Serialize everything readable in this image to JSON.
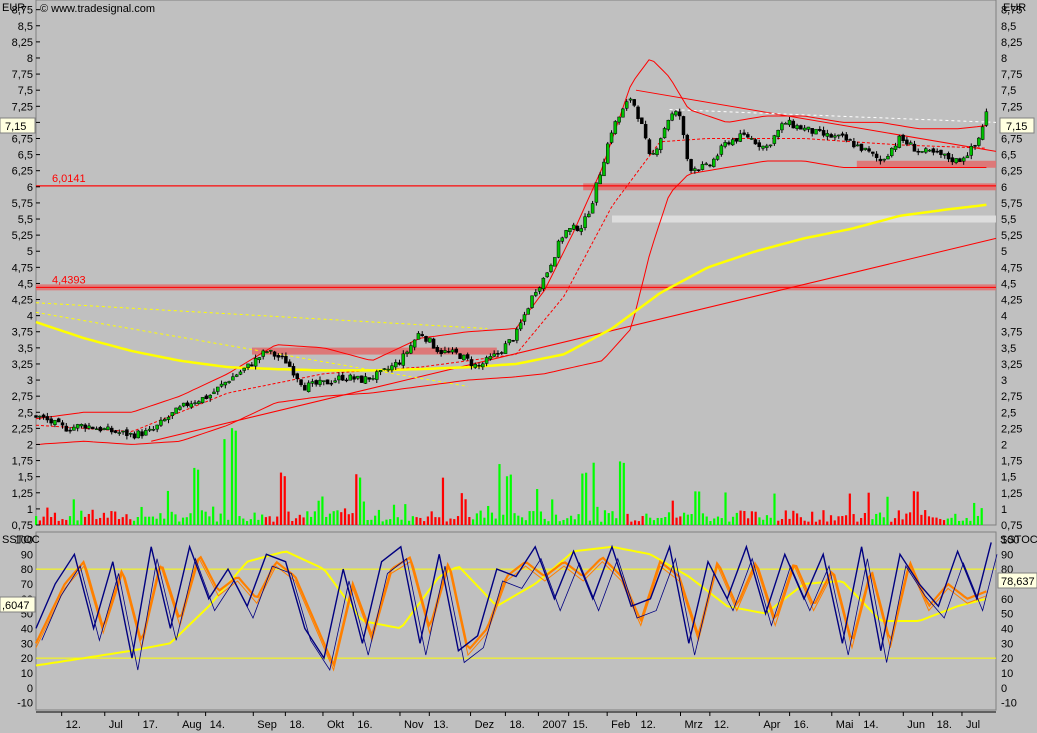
{
  "header": {
    "copyright": "© www.tradesignal.com",
    "unit": "EUR",
    "indicator": "SSTOC"
  },
  "price_panel": {
    "y_ticks": [
      "8,75",
      "8,5",
      "8,25",
      "8",
      "7,75",
      "7,5",
      "7,25",
      "7",
      "6,75",
      "6,5",
      "6,25",
      "6",
      "5,75",
      "5,5",
      "5,25",
      "5",
      "4,75",
      "4,5",
      "4,25",
      "4",
      "3,75",
      "3,5",
      "3,25",
      "3",
      "2,75",
      "2,5",
      "2,25",
      "2",
      "1,75",
      "1,5",
      "1,25",
      "1",
      "0,75"
    ],
    "last_price_label": "7,15",
    "levels": [
      {
        "label": "6,0141",
        "value": 6.0141
      },
      {
        "label": "4,4393",
        "value": 4.4393
      }
    ],
    "colors": {
      "bollinger": "#ff0000",
      "sma": "#ffff00",
      "candle_up": "#00c000",
      "candle_down": "#000000",
      "volume_up": "#00ff00",
      "volume_down": "#ff0000",
      "zone": "#e07070",
      "light_zone": "#e0e0e0"
    }
  },
  "stoch_panel": {
    "y_ticks": [
      "100",
      "90",
      "80",
      "70",
      "60",
      "50",
      "40",
      "30",
      "20",
      "10",
      "0",
      "-10"
    ],
    "left_label": ",6047",
    "right_label": "78,637",
    "line_80": 80,
    "line_20": 20,
    "colors": {
      "fast": "#000080",
      "slow": "#ff8000",
      "signal": "#ffff00"
    }
  },
  "x_axis": {
    "labels": [
      {
        "text": "12.",
        "pos": 0.028
      },
      {
        "text": "Jul",
        "pos": 0.075
      },
      {
        "text": "17.",
        "pos": 0.112
      },
      {
        "text": "Aug",
        "pos": 0.155
      },
      {
        "text": "14.",
        "pos": 0.185
      },
      {
        "text": "Sep",
        "pos": 0.237
      },
      {
        "text": "18.",
        "pos": 0.272
      },
      {
        "text": "Okt",
        "pos": 0.313
      },
      {
        "text": "16.",
        "pos": 0.346
      },
      {
        "text": "Nov",
        "pos": 0.397
      },
      {
        "text": "13.",
        "pos": 0.429
      },
      {
        "text": "Dez",
        "pos": 0.474
      },
      {
        "text": "18.",
        "pos": 0.512
      },
      {
        "text": "2007",
        "pos": 0.548
      },
      {
        "text": "15.",
        "pos": 0.581
      },
      {
        "text": "Feb",
        "pos": 0.623
      },
      {
        "text": "12.",
        "pos": 0.655
      },
      {
        "text": "Mrz",
        "pos": 0.703
      },
      {
        "text": "12.",
        "pos": 0.735
      },
      {
        "text": "Apr",
        "pos": 0.789
      },
      {
        "text": "16.",
        "pos": 0.822
      },
      {
        "text": "Mai",
        "pos": 0.868
      },
      {
        "text": "14.",
        "pos": 0.898
      },
      {
        "text": "Jun",
        "pos": 0.946
      },
      {
        "text": "18.",
        "pos": 0.978
      },
      {
        "text": "Jul",
        "pos": 1.01
      }
    ]
  },
  "chart_data": {
    "type": "candlestick",
    "ylim": [
      0.75,
      8.9
    ],
    "price_anchors": [
      [
        0,
        2.45
      ],
      [
        0.03,
        2.25
      ],
      [
        0.05,
        2.3
      ],
      [
        0.08,
        2.2
      ],
      [
        0.1,
        2.15
      ],
      [
        0.12,
        2.2
      ],
      [
        0.14,
        2.45
      ],
      [
        0.16,
        2.65
      ],
      [
        0.18,
        2.75
      ],
      [
        0.2,
        3.0
      ],
      [
        0.22,
        3.2
      ],
      [
        0.24,
        3.45
      ],
      [
        0.26,
        3.3
      ],
      [
        0.28,
        2.9
      ],
      [
        0.3,
        2.95
      ],
      [
        0.32,
        3.05
      ],
      [
        0.34,
        3.0
      ],
      [
        0.36,
        3.1
      ],
      [
        0.38,
        3.3
      ],
      [
        0.4,
        3.75
      ],
      [
        0.42,
        3.45
      ],
      [
        0.44,
        3.4
      ],
      [
        0.46,
        3.2
      ],
      [
        0.48,
        3.4
      ],
      [
        0.5,
        3.7
      ],
      [
        0.52,
        4.4
      ],
      [
        0.53,
        4.6
      ],
      [
        0.55,
        5.3
      ],
      [
        0.57,
        5.4
      ],
      [
        0.58,
        5.8
      ],
      [
        0.6,
        6.9
      ],
      [
        0.62,
        7.4
      ],
      [
        0.63,
        7.0
      ],
      [
        0.64,
        6.4
      ],
      [
        0.66,
        7.1
      ],
      [
        0.67,
        7.15
      ],
      [
        0.68,
        6.3
      ],
      [
        0.7,
        6.3
      ],
      [
        0.72,
        6.7
      ],
      [
        0.74,
        6.8
      ],
      [
        0.76,
        6.6
      ],
      [
        0.78,
        7.0
      ],
      [
        0.8,
        6.9
      ],
      [
        0.82,
        6.8
      ],
      [
        0.84,
        6.75
      ],
      [
        0.86,
        6.6
      ],
      [
        0.88,
        6.4
      ],
      [
        0.9,
        6.75
      ],
      [
        0.92,
        6.55
      ],
      [
        0.94,
        6.5
      ],
      [
        0.96,
        6.4
      ],
      [
        0.98,
        6.65
      ],
      [
        0.99,
        7.15
      ]
    ],
    "upper_band": [
      [
        0,
        2.4
      ],
      [
        0.05,
        2.5
      ],
      [
        0.1,
        2.5
      ],
      [
        0.15,
        2.75
      ],
      [
        0.2,
        3.1
      ],
      [
        0.25,
        3.55
      ],
      [
        0.3,
        3.5
      ],
      [
        0.35,
        3.3
      ],
      [
        0.4,
        3.65
      ],
      [
        0.45,
        3.75
      ],
      [
        0.5,
        3.8
      ],
      [
        0.53,
        4.4
      ],
      [
        0.56,
        5.3
      ],
      [
        0.59,
        6.3
      ],
      [
        0.62,
        7.6
      ],
      [
        0.64,
        8.0
      ],
      [
        0.66,
        7.7
      ],
      [
        0.68,
        7.2
      ],
      [
        0.72,
        7.0
      ],
      [
        0.76,
        7.1
      ],
      [
        0.8,
        7.1
      ],
      [
        0.84,
        7.0
      ],
      [
        0.88,
        7.0
      ],
      [
        0.92,
        6.9
      ],
      [
        0.96,
        6.9
      ],
      [
        0.99,
        6.95
      ]
    ],
    "lower_band": [
      [
        0,
        2.0
      ],
      [
        0.05,
        2.05
      ],
      [
        0.1,
        2.0
      ],
      [
        0.15,
        2.05
      ],
      [
        0.2,
        2.3
      ],
      [
        0.25,
        2.65
      ],
      [
        0.3,
        2.75
      ],
      [
        0.35,
        2.8
      ],
      [
        0.4,
        2.9
      ],
      [
        0.45,
        3.0
      ],
      [
        0.5,
        3.05
      ],
      [
        0.53,
        3.1
      ],
      [
        0.56,
        3.2
      ],
      [
        0.59,
        3.3
      ],
      [
        0.62,
        3.8
      ],
      [
        0.64,
        5.0
      ],
      [
        0.66,
        5.9
      ],
      [
        0.68,
        6.2
      ],
      [
        0.72,
        6.3
      ],
      [
        0.76,
        6.4
      ],
      [
        0.8,
        6.4
      ],
      [
        0.84,
        6.3
      ],
      [
        0.88,
        6.3
      ],
      [
        0.92,
        6.3
      ],
      [
        0.96,
        6.3
      ],
      [
        0.99,
        6.3
      ]
    ],
    "middle_band": [
      [
        0,
        2.3
      ],
      [
        0.1,
        2.2
      ],
      [
        0.2,
        2.8
      ],
      [
        0.3,
        3.1
      ],
      [
        0.4,
        3.2
      ],
      [
        0.5,
        3.4
      ],
      [
        0.55,
        4.3
      ],
      [
        0.6,
        5.7
      ],
      [
        0.65,
        6.7
      ],
      [
        0.7,
        6.75
      ],
      [
        0.8,
        6.75
      ],
      [
        0.9,
        6.65
      ],
      [
        0.99,
        6.6
      ]
    ],
    "sma_long": [
      [
        0,
        3.9
      ],
      [
        0.05,
        3.65
      ],
      [
        0.1,
        3.45
      ],
      [
        0.15,
        3.3
      ],
      [
        0.2,
        3.2
      ],
      [
        0.25,
        3.17
      ],
      [
        0.3,
        3.15
      ],
      [
        0.35,
        3.15
      ],
      [
        0.4,
        3.17
      ],
      [
        0.45,
        3.2
      ],
      [
        0.5,
        3.25
      ],
      [
        0.55,
        3.4
      ],
      [
        0.6,
        3.8
      ],
      [
        0.65,
        4.35
      ],
      [
        0.7,
        4.75
      ],
      [
        0.75,
        5.0
      ],
      [
        0.8,
        5.2
      ],
      [
        0.85,
        5.35
      ],
      [
        0.9,
        5.55
      ],
      [
        0.95,
        5.65
      ],
      [
        0.99,
        5.72
      ]
    ],
    "trendlines": [
      {
        "from": [
          0.12,
          2.05
        ],
        "to": [
          1.0,
          5.2
        ],
        "color": "#ff0000",
        "style": "solid"
      },
      {
        "from": [
          0.625,
          7.5
        ],
        "to": [
          1.0,
          6.55
        ],
        "color": "#ff0000",
        "style": "solid"
      },
      {
        "from": [
          0.0,
          4.2
        ],
        "to": [
          0.47,
          3.8
        ],
        "color": "#ffff00",
        "style": "dashed"
      },
      {
        "from": [
          0.0,
          4.05
        ],
        "to": [
          0.45,
          2.9
        ],
        "color": "#ffff00",
        "style": "dashed"
      },
      {
        "from": [
          0.66,
          7.2
        ],
        "to": [
          1.0,
          7.0
        ],
        "color": "#ffffff",
        "style": "dashed"
      }
    ],
    "zones": [
      {
        "from": 0.225,
        "to": 0.48,
        "value": 3.45,
        "color": "#e07070"
      },
      {
        "from": 0.855,
        "to": 1.0,
        "value": 6.35,
        "color": "#e07070"
      },
      {
        "from": 0.57,
        "to": 1.0,
        "value": 6.0,
        "color": "#e07070"
      },
      {
        "from": 0.6,
        "to": 1.0,
        "value": 5.5,
        "color": "#e0e0e0"
      }
    ],
    "volume_spikes": [
      [
        0.17,
        0.85
      ],
      [
        0.2,
        1.25
      ],
      [
        0.21,
        1.45
      ],
      [
        0.26,
        0.75
      ],
      [
        0.34,
        0.7
      ],
      [
        0.43,
        0.65
      ],
      [
        0.49,
        0.85
      ],
      [
        0.5,
        0.7
      ],
      [
        0.53,
        0.55
      ],
      [
        0.58,
        0.75
      ],
      [
        0.59,
        0.9
      ],
      [
        0.62,
        0.95
      ],
      [
        0.7,
        0.5
      ],
      [
        0.73,
        0.45
      ],
      [
        0.78,
        0.45
      ],
      [
        0.86,
        0.4
      ],
      [
        0.93,
        0.45
      ]
    ],
    "stoch_fast": [
      [
        0,
        40
      ],
      [
        0.02,
        70
      ],
      [
        0.04,
        90
      ],
      [
        0.06,
        40
      ],
      [
        0.08,
        85
      ],
      [
        0.1,
        20
      ],
      [
        0.12,
        95
      ],
      [
        0.14,
        40
      ],
      [
        0.16,
        95
      ],
      [
        0.18,
        60
      ],
      [
        0.2,
        80
      ],
      [
        0.22,
        55
      ],
      [
        0.24,
        90
      ],
      [
        0.26,
        85
      ],
      [
        0.28,
        40
      ],
      [
        0.3,
        20
      ],
      [
        0.32,
        80
      ],
      [
        0.34,
        30
      ],
      [
        0.36,
        85
      ],
      [
        0.38,
        95
      ],
      [
        0.4,
        30
      ],
      [
        0.42,
        90
      ],
      [
        0.44,
        25
      ],
      [
        0.46,
        35
      ],
      [
        0.48,
        80
      ],
      [
        0.5,
        75
      ],
      [
        0.52,
        95
      ],
      [
        0.54,
        60
      ],
      [
        0.56,
        92
      ],
      [
        0.58,
        60
      ],
      [
        0.6,
        95
      ],
      [
        0.62,
        55
      ],
      [
        0.64,
        60
      ],
      [
        0.66,
        95
      ],
      [
        0.68,
        30
      ],
      [
        0.7,
        85
      ],
      [
        0.72,
        60
      ],
      [
        0.74,
        95
      ],
      [
        0.76,
        50
      ],
      [
        0.78,
        90
      ],
      [
        0.8,
        60
      ],
      [
        0.82,
        90
      ],
      [
        0.84,
        30
      ],
      [
        0.86,
        95
      ],
      [
        0.88,
        25
      ],
      [
        0.9,
        90
      ],
      [
        0.92,
        70
      ],
      [
        0.94,
        55
      ],
      [
        0.96,
        92
      ],
      [
        0.98,
        60
      ],
      [
        0.995,
        98
      ]
    ],
    "stoch_slow": [
      [
        0,
        30
      ],
      [
        0.03,
        70
      ],
      [
        0.05,
        85
      ],
      [
        0.07,
        40
      ],
      [
        0.09,
        80
      ],
      [
        0.11,
        30
      ],
      [
        0.13,
        85
      ],
      [
        0.15,
        45
      ],
      [
        0.17,
        90
      ],
      [
        0.19,
        65
      ],
      [
        0.21,
        75
      ],
      [
        0.23,
        60
      ],
      [
        0.25,
        85
      ],
      [
        0.27,
        75
      ],
      [
        0.29,
        45
      ],
      [
        0.31,
        15
      ],
      [
        0.33,
        70
      ],
      [
        0.35,
        35
      ],
      [
        0.37,
        80
      ],
      [
        0.39,
        88
      ],
      [
        0.41,
        40
      ],
      [
        0.43,
        85
      ],
      [
        0.45,
        25
      ],
      [
        0.47,
        40
      ],
      [
        0.49,
        75
      ],
      [
        0.51,
        85
      ],
      [
        0.53,
        75
      ],
      [
        0.55,
        85
      ],
      [
        0.57,
        75
      ],
      [
        0.59,
        88
      ],
      [
        0.61,
        75
      ],
      [
        0.63,
        45
      ],
      [
        0.65,
        85
      ],
      [
        0.67,
        75
      ],
      [
        0.69,
        35
      ],
      [
        0.71,
        85
      ],
      [
        0.73,
        55
      ],
      [
        0.75,
        85
      ],
      [
        0.77,
        45
      ],
      [
        0.79,
        85
      ],
      [
        0.81,
        55
      ],
      [
        0.83,
        80
      ],
      [
        0.85,
        30
      ],
      [
        0.87,
        80
      ],
      [
        0.89,
        30
      ],
      [
        0.91,
        85
      ],
      [
        0.93,
        55
      ],
      [
        0.95,
        70
      ],
      [
        0.97,
        60
      ],
      [
        0.99,
        65
      ]
    ],
    "stoch_signal": [
      [
        0,
        15
      ],
      [
        0.05,
        20
      ],
      [
        0.1,
        25
      ],
      [
        0.14,
        30
      ],
      [
        0.18,
        55
      ],
      [
        0.22,
        85
      ],
      [
        0.26,
        92
      ],
      [
        0.3,
        80
      ],
      [
        0.34,
        45
      ],
      [
        0.38,
        40
      ],
      [
        0.42,
        75
      ],
      [
        0.44,
        82
      ],
      [
        0.48,
        55
      ],
      [
        0.52,
        70
      ],
      [
        0.56,
        92
      ],
      [
        0.6,
        95
      ],
      [
        0.64,
        90
      ],
      [
        0.68,
        75
      ],
      [
        0.72,
        55
      ],
      [
        0.76,
        50
      ],
      [
        0.8,
        70
      ],
      [
        0.84,
        72
      ],
      [
        0.88,
        45
      ],
      [
        0.92,
        45
      ],
      [
        0.96,
        55
      ],
      [
        0.99,
        60
      ]
    ]
  }
}
